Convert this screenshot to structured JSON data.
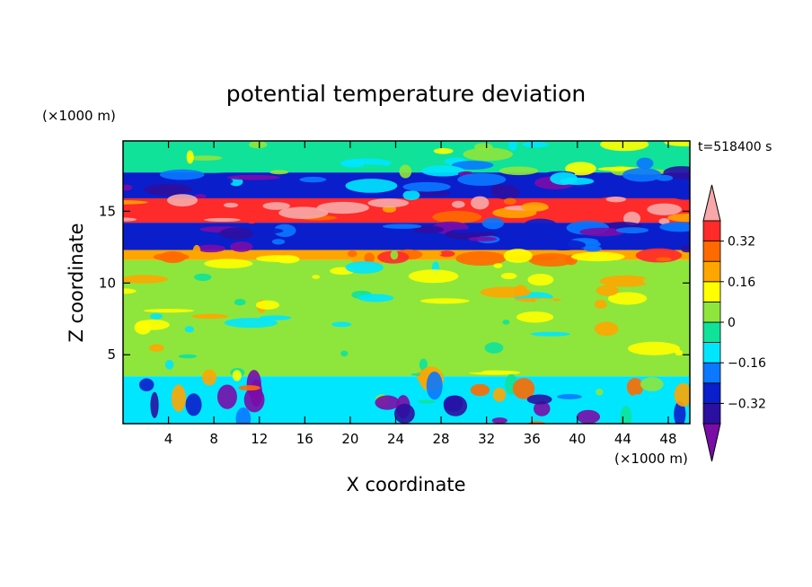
{
  "chart_data": {
    "type": "heatmap",
    "title": "potential temperature deviation",
    "xlabel": "X coordinate",
    "ylabel": "Z coordinate",
    "x_unit": "(×1000 m)",
    "y_unit": "(×1000 m)",
    "time_label": "t=518400 s",
    "xlim": [
      0,
      49.9
    ],
    "ylim": [
      0.2,
      19.9
    ],
    "x_ticks": [
      4,
      8,
      12,
      16,
      20,
      24,
      28,
      32,
      36,
      40,
      44,
      48
    ],
    "y_ticks": [
      5,
      10,
      15
    ],
    "colorbar": {
      "levels": [
        -0.4,
        -0.32,
        -0.24,
        -0.16,
        -0.08,
        0,
        0.08,
        0.16,
        0.24,
        0.32,
        0.4
      ],
      "tick_values": [
        -0.32,
        -0.16,
        0,
        0.16,
        0.32
      ],
      "tick_labels": [
        "−0.32",
        "−0.16",
        "0",
        "0.16",
        "0.32"
      ],
      "colors": [
        "#7a0ca8",
        "#2b0fa0",
        "#0a1ecc",
        "#0a78ff",
        "#00e6ff",
        "#10e29a",
        "#8ee63c",
        "#ffff00",
        "#ffa500",
        "#ff6a00",
        "#ff2a2a",
        "#f8a8a8"
      ],
      "extend": "both"
    },
    "bands": [
      {
        "z": [
          17.7,
          19.9
        ],
        "value": -0.02
      },
      {
        "z": [
          15.9,
          17.7
        ],
        "value": -0.28
      },
      {
        "z": [
          14.2,
          15.9
        ],
        "value": 0.36
      },
      {
        "z": [
          12.3,
          14.2
        ],
        "value": -0.3
      },
      {
        "z": [
          11.6,
          12.3
        ],
        "value": 0.2
      },
      {
        "z": [
          3.5,
          11.6
        ],
        "value": 0.04
      },
      {
        "z": [
          0.2,
          3.5
        ],
        "value": -0.1
      }
    ]
  }
}
